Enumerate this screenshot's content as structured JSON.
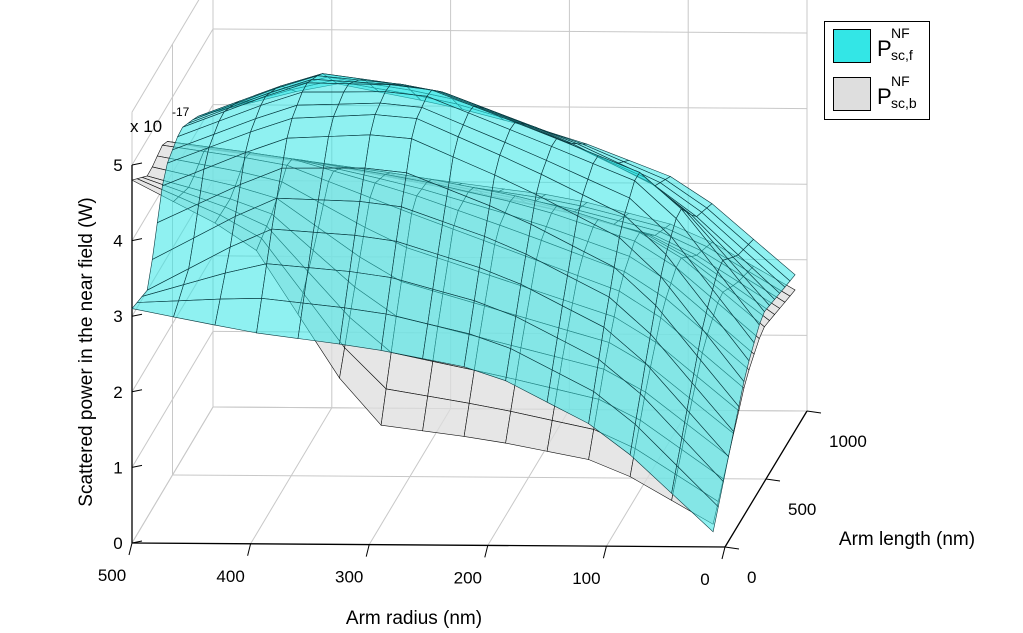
{
  "chart_data": {
    "type": "surface3d",
    "xlabel": "Arm radius (nm)",
    "ylabel": "Arm length (nm)",
    "zlabel": "Scattered power in the near field (W)",
    "z_exponent_label": "x 10",
    "z_exponent": "-17",
    "x_ticks": [
      "500",
      "400",
      "300",
      "200",
      "100",
      "0"
    ],
    "y_ticks": [
      "0",
      "500",
      "1000"
    ],
    "z_ticks": [
      "0",
      "1",
      "2",
      "3",
      "4",
      "5"
    ],
    "xlim": [
      0,
      500
    ],
    "ylim": [
      0,
      1000
    ],
    "zlim": [
      0,
      5
    ],
    "grid": true,
    "legend_placement": "top-right",
    "series": [
      {
        "name_main": "P",
        "name_sup": "NF",
        "name_sub": "sc,f",
        "color": "#33e6e6",
        "edge_color": "#0a3a40",
        "radius": [
          500,
          400,
          300,
          200,
          100,
          10
        ],
        "length": [
          0,
          200,
          400,
          600,
          800,
          1000
        ],
        "values": [
          [
            3.1,
            3.0,
            4.2,
            4.4,
            4.2,
            3.9
          ],
          [
            2.8,
            3.9,
            4.8,
            5.0,
            4.8,
            4.3
          ],
          [
            2.6,
            3.8,
            4.9,
            5.0,
            4.6,
            4.0
          ],
          [
            2.3,
            3.3,
            4.2,
            4.4,
            4.0,
            3.6
          ],
          [
            1.5,
            2.5,
            3.4,
            3.8,
            3.2,
            3.0
          ],
          [
            0.2,
            0.9,
            1.6,
            2.0,
            1.9,
            1.8
          ]
        ]
      },
      {
        "name_main": "P",
        "name_sup": "NF",
        "name_sub": "sc,b",
        "color": "#dedede",
        "edge_color": "#111111",
        "radius": [
          500,
          400,
          300,
          200,
          100,
          10
        ],
        "length": [
          0,
          200,
          400,
          600,
          800,
          1000
        ],
        "values": [
          [
            4.8,
            4.5,
            4.6,
            4.2,
            3.8,
            3.4
          ],
          [
            4.0,
            4.1,
            4.4,
            4.0,
            3.6,
            3.2
          ],
          [
            1.6,
            2.8,
            3.9,
            3.8,
            3.3,
            3.0
          ],
          [
            1.4,
            2.4,
            3.3,
            3.5,
            3.0,
            2.8
          ],
          [
            1.1,
            2.0,
            2.7,
            3.0,
            2.6,
            2.4
          ],
          [
            0.3,
            0.9,
            1.5,
            1.8,
            1.7,
            1.6
          ]
        ]
      }
    ]
  }
}
